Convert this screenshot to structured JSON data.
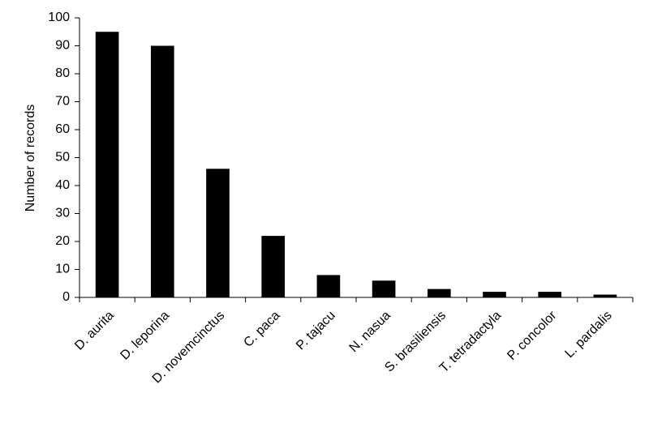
{
  "chart_data": {
    "type": "bar",
    "y_label": "Number of records",
    "categories": [
      "D. aurita",
      "D. leporina",
      "D. novemcinctus",
      "C. paca",
      "P. tajacu",
      "N. nasua",
      "S. brasiliensis",
      "T. tetradactyla",
      "P. concolor",
      "L. pardalis"
    ],
    "values": [
      95,
      90,
      46,
      22,
      8,
      6,
      3,
      2,
      2,
      1
    ],
    "color": "#000000",
    "ylim": [
      0,
      100
    ],
    "yticks": [
      0,
      10,
      20,
      30,
      40,
      50,
      60,
      70,
      80,
      90,
      100
    ],
    "grid": false
  }
}
